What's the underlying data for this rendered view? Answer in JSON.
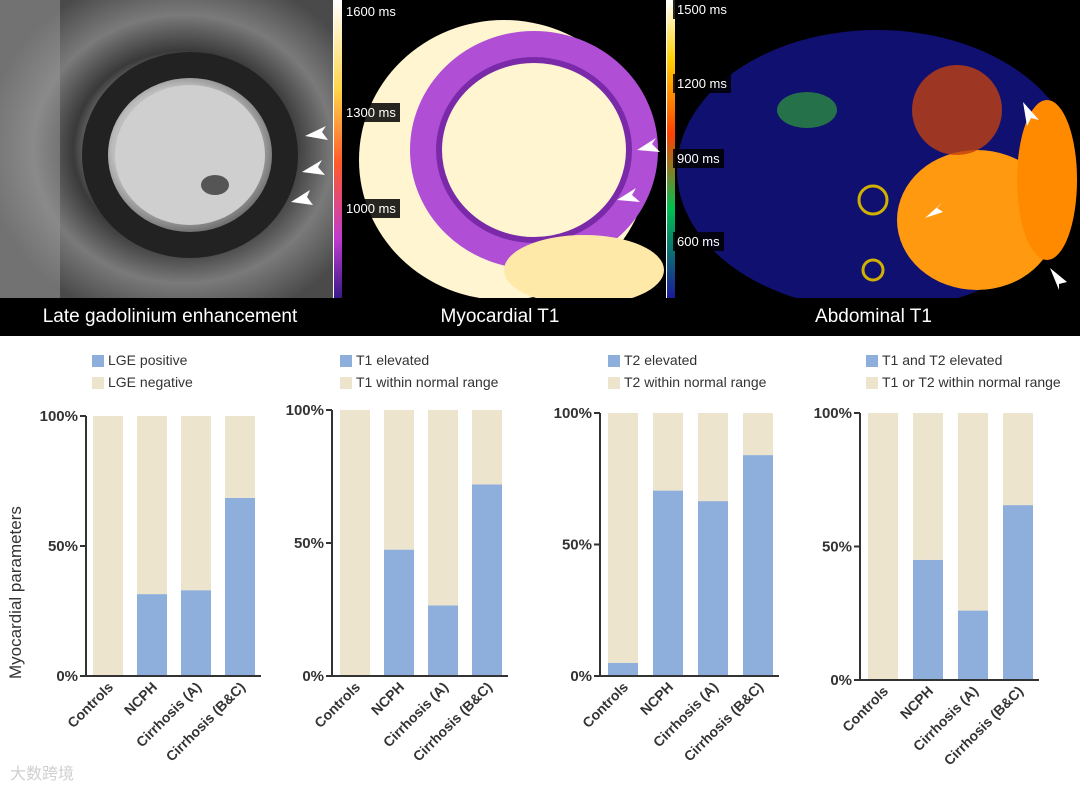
{
  "images": {
    "lge_caption": "Late gadolinium enhancement",
    "myo_caption": "Myocardial T1",
    "abd_caption": "Abdominal T1",
    "myo_scale": [
      "1600 ms",
      "1300 ms",
      "1000 ms"
    ],
    "abd_scale": [
      "1500 ms",
      "1200 ms",
      "900 ms",
      "600 ms"
    ]
  },
  "y_axis_label": "Myocardial parameters",
  "watermark": "大数跨境",
  "colors": {
    "positive": "#8eaedb",
    "negative": "#ece4cd",
    "axis": "#333333"
  },
  "chart_data": [
    {
      "type": "bar",
      "stacked": true,
      "categories": [
        "Controls",
        "NCPH",
        "Cirrhosis (A)",
        "Cirrhosis (B&C)"
      ],
      "series": [
        {
          "name": "LGE positive",
          "values": [
            0,
            31.5,
            33,
            68.5
          ]
        },
        {
          "name": "LGE negative",
          "values": [
            100,
            68.5,
            67,
            31.5
          ]
        }
      ],
      "yticks": [
        "0%",
        "50%",
        "100%"
      ],
      "ylim": [
        0,
        100
      ]
    },
    {
      "type": "bar",
      "stacked": true,
      "categories": [
        "Controls",
        "NCPH",
        "Cirrhosis (A)",
        "Cirrhosis (B&C)"
      ],
      "series": [
        {
          "name": "T1 elevated",
          "values": [
            0,
            47.5,
            26.5,
            72
          ]
        },
        {
          "name": "T1 within normal range",
          "values": [
            100,
            52.5,
            73.5,
            28
          ]
        }
      ],
      "yticks": [
        "0%",
        "50%",
        "100%"
      ],
      "ylim": [
        0,
        100
      ]
    },
    {
      "type": "bar",
      "stacked": true,
      "categories": [
        "Controls",
        "NCPH",
        "Cirrhosis (A)",
        "Cirrhosis (B&C)"
      ],
      "series": [
        {
          "name": "T2 elevated",
          "values": [
            5,
            70.5,
            66.5,
            84
          ]
        },
        {
          "name": "T2 within normal range",
          "values": [
            95,
            29.5,
            33.5,
            16
          ]
        }
      ],
      "yticks": [
        "0%",
        "50%",
        "100%"
      ],
      "ylim": [
        0,
        100
      ]
    },
    {
      "type": "bar",
      "stacked": true,
      "categories": [
        "Controls",
        "NCPH",
        "Cirrhosis (A)",
        "Cirrhosis (B&C)"
      ],
      "series": [
        {
          "name": "T1 and T2 elevated",
          "values": [
            0,
            45,
            26,
            65.5
          ]
        },
        {
          "name": "T1 or T2 within normal range",
          "values": [
            100,
            55,
            74,
            34.5
          ]
        }
      ],
      "yticks": [
        "0%",
        "50%",
        "100%"
      ],
      "ylim": [
        0,
        100
      ]
    }
  ]
}
